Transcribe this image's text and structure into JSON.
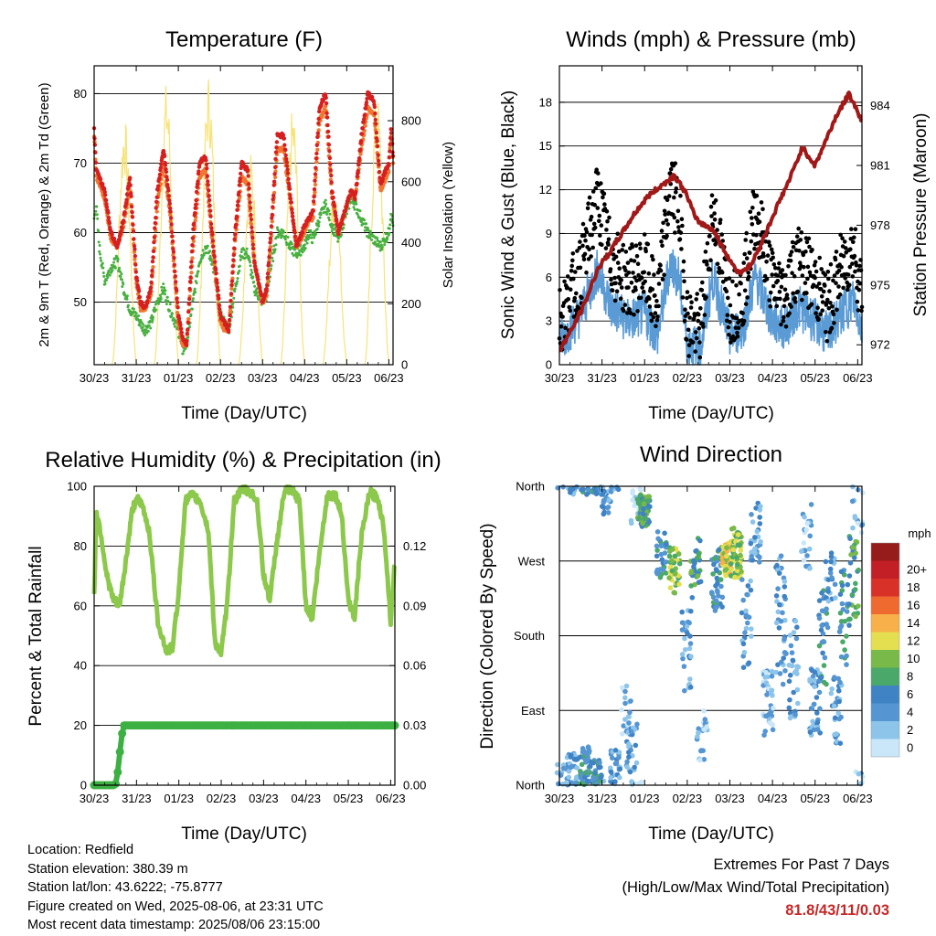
{
  "x_ticks": [
    "30/23",
    "31/23",
    "01/23",
    "02/23",
    "03/23",
    "04/23",
    "05/23",
    "06/23"
  ],
  "xlabel": "Time (Day/UTC)",
  "info": {
    "location": "Location: Redfield",
    "elevation": "Station elevation: 380.39 m",
    "latlon": "Station lat/lon: 43.6222; -75.8777",
    "created": "Figure created on Wed, 2025-08-06, at 23:31 UTC",
    "recent": "Most recent data timestamp: 2025/08/06 23:15:00"
  },
  "extremes": {
    "line1": "Extremes For Past 7 Days",
    "line2": "(High/Low/Max Wind/Total Precipitation)",
    "value": "81.8/43/11/0.03",
    "value_color": "#c62828"
  },
  "chart_data": [
    {
      "type": "line",
      "title": "Temperature (F)",
      "xlabel": "Time (Day/UTC)",
      "ylabel": "2m & 9m T (Red, Orange) & 2m Td (Green)",
      "y2label": "Solar Insolation (Yellow)",
      "ylim": [
        41,
        84
      ],
      "y_ticks": [
        50,
        60,
        70,
        80
      ],
      "y2lim": [
        0,
        980
      ],
      "y2_ticks": [
        0,
        200,
        400,
        600,
        800
      ],
      "grid": true,
      "x": [
        0,
        0.05,
        0.12,
        0.25,
        0.4,
        0.55,
        0.7,
        0.85,
        1.0,
        1.1,
        1.2,
        1.35,
        1.5,
        1.65,
        1.8,
        2.0,
        2.1,
        2.2,
        2.35,
        2.5,
        2.65,
        2.8,
        3.0,
        3.1,
        3.2,
        3.35,
        3.5,
        3.65,
        3.8,
        4.0,
        4.1,
        4.2,
        4.35,
        4.5,
        4.65,
        4.8,
        5.0,
        5.1,
        5.2,
        5.35,
        5.5,
        5.65,
        5.8,
        6.0,
        6.1,
        6.2,
        6.35,
        6.5,
        6.65,
        6.8,
        7.0,
        7.05,
        7.1
      ],
      "series": [
        {
          "color": "#d62020",
          "values": [
            75,
            69,
            68,
            66,
            60,
            58,
            62,
            68,
            54,
            50,
            49,
            52,
            66,
            72,
            64,
            48,
            45,
            44,
            60,
            70,
            71,
            60,
            48,
            47,
            46,
            60,
            70,
            69,
            56,
            50,
            52,
            60,
            74,
            74,
            66,
            58,
            61,
            62,
            63,
            78,
            80,
            66,
            60,
            64,
            66,
            65,
            74,
            80,
            79,
            67,
            70,
            75,
            71
          ]
        },
        {
          "color": "#f07830",
          "values": [
            74,
            68,
            67,
            65,
            59,
            58,
            61,
            67,
            53,
            49,
            49,
            51,
            64,
            70,
            63,
            47,
            44,
            44,
            58,
            68,
            69,
            59,
            47,
            46,
            46,
            59,
            68,
            67,
            56,
            50,
            51,
            59,
            72,
            72,
            65,
            58,
            60,
            62,
            62,
            76,
            78,
            65,
            60,
            64,
            66,
            65,
            72,
            78,
            77,
            66,
            69,
            74,
            70
          ]
        },
        {
          "color": "#48b040",
          "values": [
            62,
            64,
            58,
            53,
            55,
            56,
            52,
            49,
            48,
            47,
            46,
            47,
            50,
            52,
            49,
            46,
            43,
            44,
            50,
            56,
            58,
            56,
            48,
            47,
            46,
            52,
            57,
            57,
            52,
            50,
            51,
            55,
            60,
            60,
            58,
            57,
            58,
            60,
            59,
            62,
            64,
            61,
            59,
            63,
            65,
            64,
            62,
            60,
            59,
            58,
            60,
            63,
            61
          ]
        }
      ],
      "insolation_color": "#f6e37a"
    },
    {
      "type": "scatter",
      "title": "Winds (mph) & Pressure (mb)",
      "xlabel": "Time (Day/UTC)",
      "ylabel": "Sonic Wind & Gust (Blue, Black)",
      "y2label": "Station Pressure (Maroon)",
      "ylim": [
        0,
        20.5
      ],
      "y_ticks": [
        0,
        3,
        6,
        9,
        12,
        15,
        18
      ],
      "y2lim": [
        971.0,
        986.0
      ],
      "y2_ticks": [
        972,
        975,
        978,
        981,
        984
      ],
      "grid": true,
      "wind_color": "#5a9bd5",
      "gust_color": "#000000",
      "pressure": {
        "color": "#a01818",
        "x": [
          0,
          0.3,
          0.6,
          0.9,
          1.2,
          1.5,
          1.8,
          2.1,
          2.4,
          2.7,
          3.0,
          3.2,
          3.4,
          3.6,
          3.9,
          4.2,
          4.5,
          4.8,
          5.1,
          5.4,
          5.7,
          6.0,
          6.2,
          6.5,
          6.8,
          7.0,
          7.1
        ],
        "values": [
          971.7,
          972.8,
          974.1,
          975.8,
          976.7,
          977.7,
          978.7,
          979.5,
          980.0,
          980.5,
          979.5,
          978.3,
          978.0,
          977.8,
          976.6,
          975.6,
          976.0,
          977.4,
          978.9,
          980.3,
          981.9,
          981.0,
          982.0,
          983.5,
          984.6,
          983.7,
          983.2
        ]
      }
    },
    {
      "type": "line",
      "title": "Relative Humidity (%) & Precipitation (in)",
      "xlabel": "Time (Day/UTC)",
      "ylabel": "Percent & Total Rainfall",
      "ylim": [
        0,
        100
      ],
      "y_ticks": [
        0,
        20,
        40,
        60,
        80,
        100
      ],
      "y2lim": [
        0,
        0.15
      ],
      "y2_ticks": [
        0.0,
        0.03,
        0.06,
        0.09,
        0.12
      ],
      "grid": true,
      "humidity": {
        "color": "#8cc84b",
        "x": [
          0,
          0.05,
          0.15,
          0.3,
          0.45,
          0.6,
          0.75,
          0.9,
          1.0,
          1.15,
          1.3,
          1.5,
          1.7,
          1.85,
          2.0,
          2.15,
          2.3,
          2.5,
          2.7,
          2.85,
          3.0,
          3.15,
          3.3,
          3.5,
          3.7,
          3.85,
          4.0,
          4.15,
          4.3,
          4.5,
          4.7,
          4.85,
          5.0,
          5.15,
          5.3,
          5.5,
          5.7,
          5.85,
          6.0,
          6.15,
          6.3,
          6.5,
          6.7,
          6.85,
          7.0,
          7.1
        ],
        "values": [
          63,
          92,
          85,
          70,
          62,
          60,
          75,
          92,
          96,
          93,
          85,
          55,
          45,
          46,
          65,
          95,
          97,
          95,
          85,
          48,
          44,
          62,
          95,
          99,
          98,
          95,
          70,
          62,
          80,
          99,
          98,
          95,
          60,
          56,
          75,
          97,
          97,
          90,
          62,
          56,
          82,
          98,
          96,
          85,
          55,
          75
        ]
      },
      "precip": {
        "color": "#3cb043",
        "x": [
          0,
          0.3,
          0.5,
          0.55,
          0.6,
          0.65,
          0.7,
          1.0,
          3.0,
          5.0,
          7.1
        ],
        "values": [
          0.0,
          0.0,
          0.0,
          0.005,
          0.015,
          0.025,
          0.03,
          0.03,
          0.03,
          0.03,
          0.03
        ]
      }
    },
    {
      "type": "scatter",
      "title": "Wind Direction",
      "xlabel": "Time (Day/UTC)",
      "ylabel": "Direction (Colored By Speed)",
      "y_ticks": [
        "North",
        "East",
        "South",
        "West",
        "North"
      ],
      "ylim": [
        0,
        360
      ],
      "grid": true,
      "legend": {
        "title": "mph",
        "position": "right",
        "labels": [
          "0",
          "2",
          "4",
          "6",
          "8",
          "10",
          "12",
          "14",
          "16",
          "18",
          "20+"
        ],
        "colors": [
          "#c9e7f8",
          "#8cc4ea",
          "#5595d2",
          "#3f83c4",
          "#4aa86a",
          "#79b949",
          "#e3df50",
          "#f8b04a",
          "#ee6a2e",
          "#d83128",
          "#c21f26",
          "#961b1b"
        ]
      }
    }
  ]
}
